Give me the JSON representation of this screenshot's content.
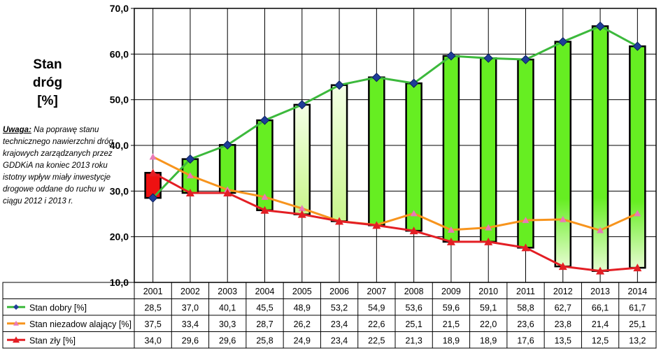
{
  "y_title": "Stan\ndróg\n[%]",
  "note": {
    "label": "Uwaga:",
    "text": "Na poprawę stanu technicznego nawierzchni dróg krajowych zarządzanych przez GDDKiA na koniec 2013 roku istotny wpływ miały inwestycje drogowe oddane do ruchu w ciągu  2012 i 2013 r."
  },
  "colors": {
    "good": "#3cb93c",
    "unsat": "#f7941d",
    "bad": "#e31e24",
    "marker_good": "#1f3d99",
    "marker_unsat": "#e87ab8",
    "bar_green": "#66ee22",
    "bar_light": "#e8fbc8",
    "bar_red": "#ee1111"
  },
  "chart_data": {
    "type": "line",
    "categories": [
      "2001",
      "2002",
      "2003",
      "2004",
      "2005",
      "2006",
      "2007",
      "2008",
      "2009",
      "2010",
      "2011",
      "2012",
      "2013",
      "2014"
    ],
    "ylim": [
      10,
      70
    ],
    "yticks": [
      "10,0",
      "20,0",
      "30,0",
      "40,0",
      "50,0",
      "60,0",
      "70,0"
    ],
    "grid": true,
    "series": [
      {
        "name": "Stan dobry [%]",
        "values": [
          28.5,
          37.0,
          40.1,
          45.5,
          48.9,
          53.2,
          54.9,
          53.6,
          59.6,
          59.1,
          58.8,
          62.7,
          66.1,
          61.7
        ],
        "labels": [
          "28,5",
          "37,0",
          "40,1",
          "45,5",
          "48,9",
          "53,2",
          "54,9",
          "53,6",
          "59,6",
          "59,1",
          "58,8",
          "62,7",
          "66,1",
          "61,7"
        ]
      },
      {
        "name": "Stan niezadow alający [%]",
        "values": [
          37.5,
          33.4,
          30.3,
          28.7,
          26.2,
          23.4,
          22.6,
          25.1,
          21.5,
          22.0,
          23.6,
          23.8,
          21.4,
          25.1
        ],
        "labels": [
          "37,5",
          "33,4",
          "30,3",
          "28,7",
          "26,2",
          "23,4",
          "22,6",
          "25,1",
          "21,5",
          "22,0",
          "23,6",
          "23,8",
          "21,4",
          "25,1"
        ]
      },
      {
        "name": "Stan zły  [%]",
        "values": [
          34.0,
          29.6,
          29.6,
          25.8,
          24.9,
          23.4,
          22.5,
          21.3,
          18.9,
          18.9,
          17.6,
          13.5,
          12.5,
          13.2
        ],
        "labels": [
          "34,0",
          "29,6",
          "29,6",
          "25,8",
          "24,9",
          "23,4",
          "22,5",
          "21,3",
          "18,9",
          "18,9",
          "17,6",
          "13,5",
          "12,5",
          "13,2"
        ]
      }
    ],
    "bar_style": [
      "red",
      "green",
      "green",
      "green",
      "light",
      "light",
      "green",
      "green",
      "green",
      "green",
      "green",
      "green",
      "green",
      "green"
    ]
  }
}
